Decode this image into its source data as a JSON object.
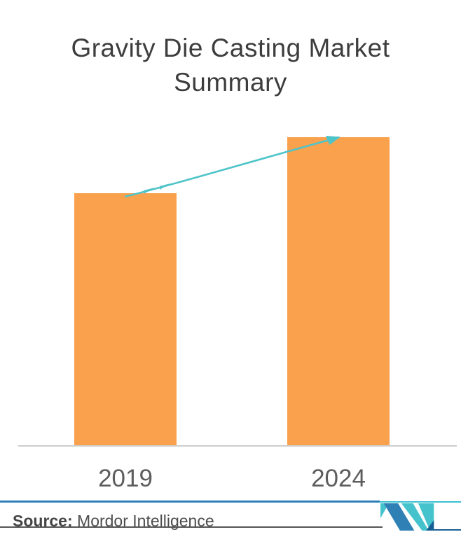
{
  "title": "Gravity Die Casting Market Summary",
  "chart_data": {
    "type": "bar",
    "title": "Gravity Die Casting Market Summary",
    "categories": [
      "2019",
      "2024"
    ],
    "values": [
      82,
      100
    ],
    "value_note": "no numeric axis shown; values are relative bar heights (2024 = 100)",
    "ylim": [
      0,
      100
    ],
    "xlabel": "",
    "ylabel": "",
    "grid": false,
    "legend": "none",
    "bar_color": "#F9A14D",
    "trend_arrow": {
      "from_category": "2019",
      "to_category": "2024",
      "direction": "up",
      "color": "#4EC4C9"
    }
  },
  "footer": {
    "source_label": "Source:",
    "source_value": "Mordor Intelligence",
    "logo_name": "mordor-intelligence-logo",
    "rule_color_left": "#2e81b8",
    "rule_color_right": "#3ac1d2"
  },
  "colors": {
    "background": "#ffffff",
    "title_text": "#3d3d3d",
    "axis_label_text": "#5d5d5d",
    "axis_line": "#cdcdcd",
    "source_text": "#4d4d4d",
    "logo_blue": "#2e80b5",
    "logo_teal": "#44c3cd",
    "logo_navy": "#155e93"
  }
}
